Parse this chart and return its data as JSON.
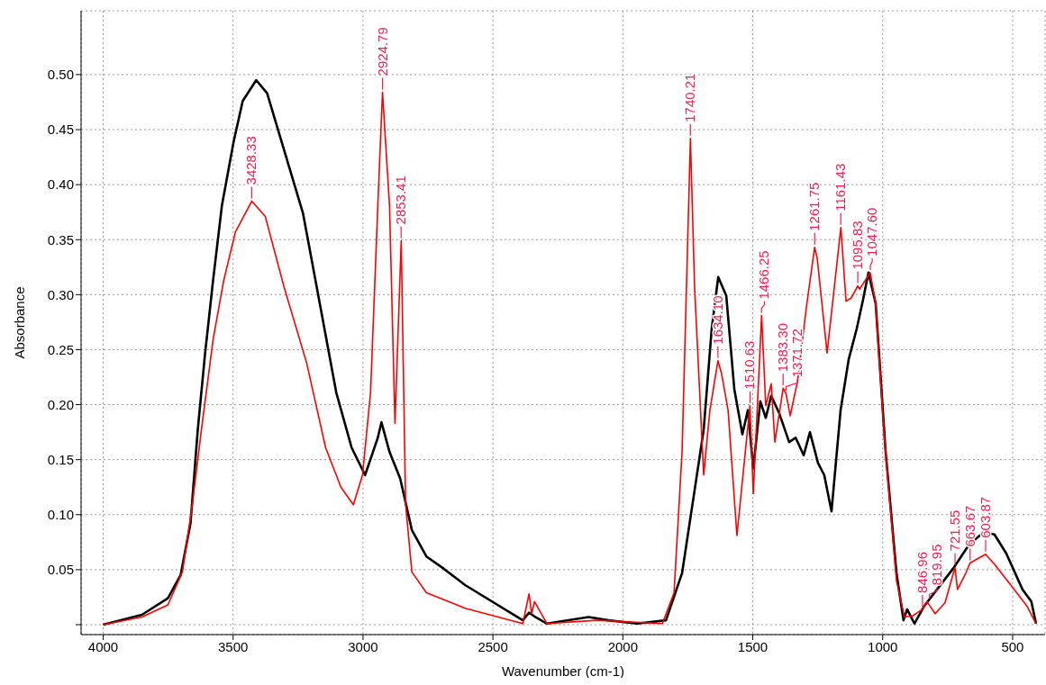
{
  "chart_data": {
    "type": "line",
    "xlabel": "Wavenumber (cm-1)",
    "ylabel": "Absorbance",
    "xlim": [
      4085,
      375
    ],
    "xticks": [
      4000,
      3500,
      3000,
      2500,
      2000,
      1500,
      1000,
      500
    ],
    "ylim": [
      -0.009,
      0.558
    ],
    "yticks": [
      {
        "value": 0,
        "label": null
      },
      {
        "value": 0.05,
        "label": "0.05"
      },
      {
        "value": 0.1,
        "label": "0.10"
      },
      {
        "value": 0.15,
        "label": "0.15"
      },
      {
        "value": 0.2,
        "label": "0.20"
      },
      {
        "value": 0.25,
        "label": "0.25"
      },
      {
        "value": 0.3,
        "label": "0.30"
      },
      {
        "value": 0.35,
        "label": "0.35"
      },
      {
        "value": 0.4,
        "label": "0.40"
      },
      {
        "value": 0.45,
        "label": "0.45"
      },
      {
        "value": 0.5,
        "label": "0.50"
      }
    ],
    "grid": true,
    "series": [
      {
        "color": "#000000",
        "x": [
          4000,
          3851,
          3751,
          3702,
          3664,
          3636,
          3608,
          3577,
          3543,
          3498,
          3463,
          3411,
          3369,
          3317,
          3231,
          3175,
          3103,
          3044,
          2992,
          2943,
          2929,
          2898,
          2857,
          2812,
          2756,
          2690,
          2607,
          2385,
          2361,
          2337,
          2292,
          2132,
          2056,
          1945,
          1834,
          1772,
          1724,
          1689,
          1658,
          1633,
          1602,
          1571,
          1540,
          1519,
          1498,
          1471,
          1450,
          1429,
          1398,
          1360,
          1335,
          1304,
          1280,
          1249,
          1225,
          1197,
          1162,
          1131,
          1100,
          1076,
          1055,
          1027,
          989,
          947,
          920,
          906,
          878,
          840,
          791,
          729,
          667,
          611,
          570,
          525,
          462,
          428,
          410
        ],
        "values": [
          0,
          0.009,
          0.024,
          0.045,
          0.092,
          0.177,
          0.246,
          0.313,
          0.381,
          0.439,
          0.476,
          0.495,
          0.483,
          0.442,
          0.374,
          0.303,
          0.211,
          0.161,
          0.136,
          0.17,
          0.184,
          0.157,
          0.133,
          0.086,
          0.062,
          0.051,
          0.036,
          0.004,
          0.011,
          0.007,
          0.001,
          0.007,
          0.004,
          0.001,
          0.004,
          0.047,
          0.122,
          0.177,
          0.269,
          0.316,
          0.299,
          0.214,
          0.173,
          0.195,
          0.142,
          0.203,
          0.188,
          0.208,
          0.192,
          0.166,
          0.17,
          0.154,
          0.175,
          0.147,
          0.136,
          0.103,
          0.195,
          0.241,
          0.269,
          0.295,
          0.32,
          0.292,
          0.158,
          0.047,
          0.004,
          0.014,
          0.001,
          0.017,
          0.032,
          0.051,
          0.073,
          0.084,
          0.082,
          0.065,
          0.032,
          0.021,
          0.001
        ]
      },
      {
        "color": "#ff0000",
        "x": [
          4000,
          3851,
          3751,
          3695,
          3657,
          3622,
          3577,
          3536,
          3491,
          3428,
          3376,
          3304,
          3217,
          3144,
          3085,
          3037,
          3002,
          2971,
          2943,
          2925,
          2898,
          2877,
          2853,
          2836,
          2812,
          2756,
          2607,
          2385,
          2361,
          2351,
          2340,
          2292,
          2101,
          1848,
          1803,
          1772,
          1740,
          1724,
          1689,
          1665,
          1634,
          1620,
          1595,
          1561,
          1511,
          1498,
          1466,
          1450,
          1429,
          1415,
          1383,
          1372,
          1356,
          1328,
          1294,
          1262,
          1252,
          1214,
          1161,
          1141,
          1121,
          1096,
          1089,
          1048,
          1027,
          996,
          947,
          916,
          885,
          847,
          830,
          798,
          760,
          722,
          712,
          680,
          664,
          604,
          570,
          507,
          445,
          410
        ],
        "values": [
          0,
          0.007,
          0.018,
          0.048,
          0.109,
          0.177,
          0.259,
          0.313,
          0.357,
          0.385,
          0.371,
          0.307,
          0.238,
          0.161,
          0.125,
          0.109,
          0.136,
          0.211,
          0.381,
          0.484,
          0.381,
          0.183,
          0.349,
          0.109,
          0.048,
          0.029,
          0.015,
          0.001,
          0.028,
          0.01,
          0.021,
          0.001,
          0.004,
          0.001,
          0.029,
          0.158,
          0.442,
          0.307,
          0.136,
          0.195,
          0.24,
          0.228,
          0.195,
          0.081,
          0.199,
          0.119,
          0.281,
          0.199,
          0.219,
          0.166,
          0.215,
          0.21,
          0.19,
          0.221,
          0.288,
          0.343,
          0.333,
          0.247,
          0.361,
          0.294,
          0.297,
          0.308,
          0.305,
          0.32,
          0.292,
          0.177,
          0.04,
          0.007,
          0.008,
          0.014,
          0.021,
          0.01,
          0.02,
          0.052,
          0.032,
          0.047,
          0.056,
          0.064,
          0.055,
          0.036,
          0.017,
          0.001
        ]
      }
    ],
    "annotations": [
      {
        "text": "3428.33",
        "x": 3428.33,
        "y": 0.385
      },
      {
        "text": "2924.79",
        "x": 2924.79,
        "y": 0.484
      },
      {
        "text": "2853.41",
        "x": 2853.41,
        "y": 0.349
      },
      {
        "text": "1740.21",
        "x": 1740.21,
        "y": 0.442
      },
      {
        "text": "1634.10",
        "x": 1634.1,
        "y": 0.24
      },
      {
        "text": "1510.63",
        "x": 1510.63,
        "y": 0.199
      },
      {
        "text": "1466.25",
        "x": 1466.25,
        "y": 0.281
      },
      {
        "text": "1383.30",
        "x": 1383.3,
        "y": 0.215
      },
      {
        "text": "1371.72",
        "x": 1371.72,
        "y": 0.21
      },
      {
        "text": "1261.75",
        "x": 1261.75,
        "y": 0.343
      },
      {
        "text": "1161.43",
        "x": 1161.43,
        "y": 0.361
      },
      {
        "text": "1095.83",
        "x": 1095.83,
        "y": 0.308
      },
      {
        "text": "1047.60",
        "x": 1047.6,
        "y": 0.32
      },
      {
        "text": "846.96",
        "x": 846.96,
        "y": 0.014
      },
      {
        "text": "819.95",
        "x": 819.95,
        "y": 0.021
      },
      {
        "text": "721.55",
        "x": 721.55,
        "y": 0.052
      },
      {
        "text": "663.67",
        "x": 663.67,
        "y": 0.056
      },
      {
        "text": "603.87",
        "x": 603.87,
        "y": 0.064
      }
    ]
  }
}
